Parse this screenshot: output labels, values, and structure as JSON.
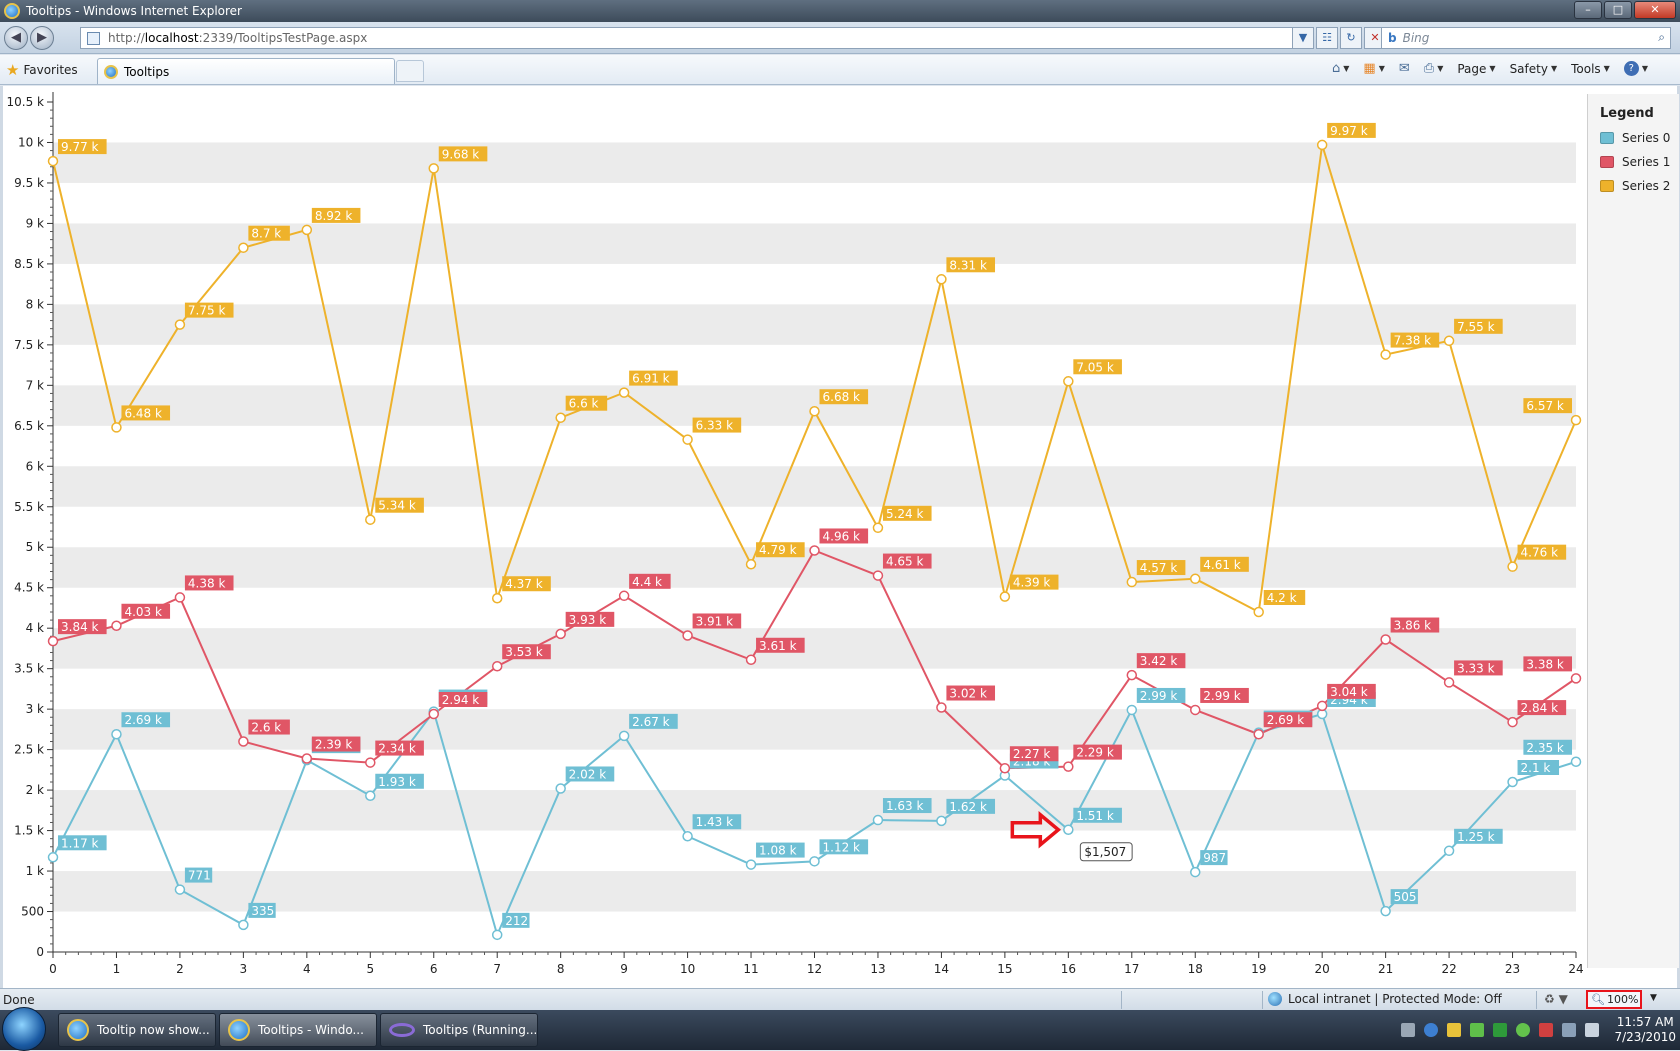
{
  "window": {
    "title": "Tooltips - Windows Internet Explorer",
    "controls": {
      "minimize": "–",
      "maximize": "□",
      "close": "✕"
    }
  },
  "address": {
    "url_prefix": "http://",
    "url_host": "localhost",
    "url_rest": ":2339/TooltipsTestPage.aspx",
    "buttons": [
      "▼",
      "☷",
      "↻",
      "✕"
    ]
  },
  "search": {
    "placeholder": "Bing",
    "engine_glyph": "b",
    "button_glyph": "⌕"
  },
  "favorites": {
    "label": "Favorites"
  },
  "tab": {
    "label": "Tooltips"
  },
  "commands": [
    {
      "name": "home",
      "glyph": "⌂",
      "label": ""
    },
    {
      "name": "feeds",
      "glyph": "▦",
      "label": ""
    },
    {
      "name": "mail",
      "glyph": "✉",
      "label": ""
    },
    {
      "name": "print",
      "glyph": "⎙",
      "label": ""
    },
    {
      "name": "page",
      "glyph": "",
      "label": "Page"
    },
    {
      "name": "safety",
      "glyph": "",
      "label": "Safety"
    },
    {
      "name": "tools",
      "glyph": "",
      "label": "Tools"
    },
    {
      "name": "help",
      "glyph": "?",
      "label": ""
    }
  ],
  "colors": {
    "series0": "#6fbfd4",
    "series1": "#e05666",
    "series2": "#eeb22b",
    "band": "#ebebeb",
    "arrow": "#e8141b"
  },
  "legend": {
    "title": "Legend",
    "items": [
      "Series 0",
      "Series 1",
      "Series 2"
    ]
  },
  "chart_data": {
    "type": "line",
    "title": "",
    "x": [
      0,
      1,
      2,
      3,
      4,
      5,
      6,
      7,
      8,
      9,
      10,
      11,
      12,
      13,
      14,
      15,
      16,
      17,
      18,
      19,
      20,
      21,
      22,
      23,
      24
    ],
    "xlim": [
      0,
      24
    ],
    "ylim": [
      0,
      10500
    ],
    "yticks": [
      0,
      500,
      1000,
      1500,
      2000,
      2500,
      3000,
      3500,
      4000,
      4500,
      5000,
      5500,
      6000,
      6500,
      7000,
      7500,
      8000,
      8500,
      9000,
      9500,
      10000,
      10500
    ],
    "ytick_labels": [
      "0",
      "500",
      "1 k",
      "1.5 k",
      "2 k",
      "2.5 k",
      "3 k",
      "3.5 k",
      "4 k",
      "4.5 k",
      "5 k",
      "5.5 k",
      "6 k",
      "6.5 k",
      "7 k",
      "7.5 k",
      "8 k",
      "8.5 k",
      "9 k",
      "9.5 k",
      "10 k",
      "10.5 k"
    ],
    "alternating_bands": true,
    "legend_position": "right",
    "series": [
      {
        "name": "Series 0",
        "values": [
          1170,
          2690,
          771,
          335,
          2370,
          1930,
          2970,
          212,
          2020,
          2670,
          1430,
          1080,
          1120,
          1630,
          1620,
          2180,
          1510,
          2990,
          987,
          2710,
          2940,
          505,
          1250,
          2100,
          2350
        ],
        "labels": [
          "1.17 k",
          "2.69 k",
          "771",
          "335",
          "2.37 k",
          "1.93 k",
          "2.97 k",
          "212",
          "2.02 k",
          "2.67 k",
          "1.43 k",
          "1.08 k",
          "1.12 k",
          "1.63 k",
          "1.62 k",
          "2.18 k",
          "1.51 k",
          "2.99 k",
          "987",
          "2.71 k",
          "2.94 k",
          "505",
          "1.25 k",
          "2.1 k",
          "2.35 k"
        ]
      },
      {
        "name": "Series 1",
        "values": [
          3840,
          4030,
          4380,
          2600,
          2390,
          2340,
          2940,
          3530,
          3930,
          4400,
          3910,
          3610,
          4960,
          4650,
          3020,
          2270,
          2290,
          3420,
          2990,
          2690,
          3040,
          3860,
          3330,
          2840,
          3380
        ],
        "labels": [
          "3.84 k",
          "4.03 k",
          "4.38 k",
          "2.6 k",
          "2.39 k",
          "2.34 k",
          "2.94 k",
          "3.53 k",
          "3.93 k",
          "4.4 k",
          "3.91 k",
          "3.61 k",
          "4.96 k",
          "4.65 k",
          "3.02 k",
          "2.27 k",
          "2.29 k",
          "3.42 k",
          "2.99 k",
          "2.69 k",
          "3.04 k",
          "3.86 k",
          "3.33 k",
          "2.84 k",
          "3.38 k"
        ]
      },
      {
        "name": "Series 2",
        "values": [
          9770,
          6480,
          7750,
          8700,
          8920,
          5340,
          9680,
          4370,
          6600,
          6910,
          6330,
          4790,
          6680,
          5240,
          8310,
          4390,
          7050,
          4570,
          4610,
          4200,
          9970,
          7380,
          7550,
          4760,
          6570
        ],
        "labels": [
          "9.77 k",
          "6.48 k",
          "7.75 k",
          "8.7 k",
          "8.92 k",
          "5.34 k",
          "9.68 k",
          "4.37 k",
          "6.6 k",
          "6.91 k",
          "6.33 k",
          "4.79 k",
          "6.68 k",
          "5.24 k",
          "8.31 k",
          "4.39 k",
          "7.05 k",
          "4.57 k",
          "4.61 k",
          "4.2 k",
          "9.97 k",
          "7.38 k",
          "7.55 k",
          "4.76 k",
          "6.57 k"
        ]
      }
    ],
    "tooltip": {
      "series_index": 0,
      "point_index": 16,
      "text": "$1,507"
    },
    "pointer_arrow": {
      "series_index": 0,
      "point_index": 16
    }
  },
  "status": {
    "text": "Done",
    "zone": "Local intranet | Protected Mode: Off",
    "zoom": "100%"
  },
  "taskbar": {
    "items": [
      {
        "label": "Tooltip now show...",
        "icon": "ie-icon"
      },
      {
        "label": "Tooltips - Windo...",
        "icon": "ie-icon"
      },
      {
        "label": "Tooltips (Running...",
        "icon": "visual-studio-icon"
      }
    ],
    "time": "11:57 AM",
    "date": "7/23/2010"
  }
}
